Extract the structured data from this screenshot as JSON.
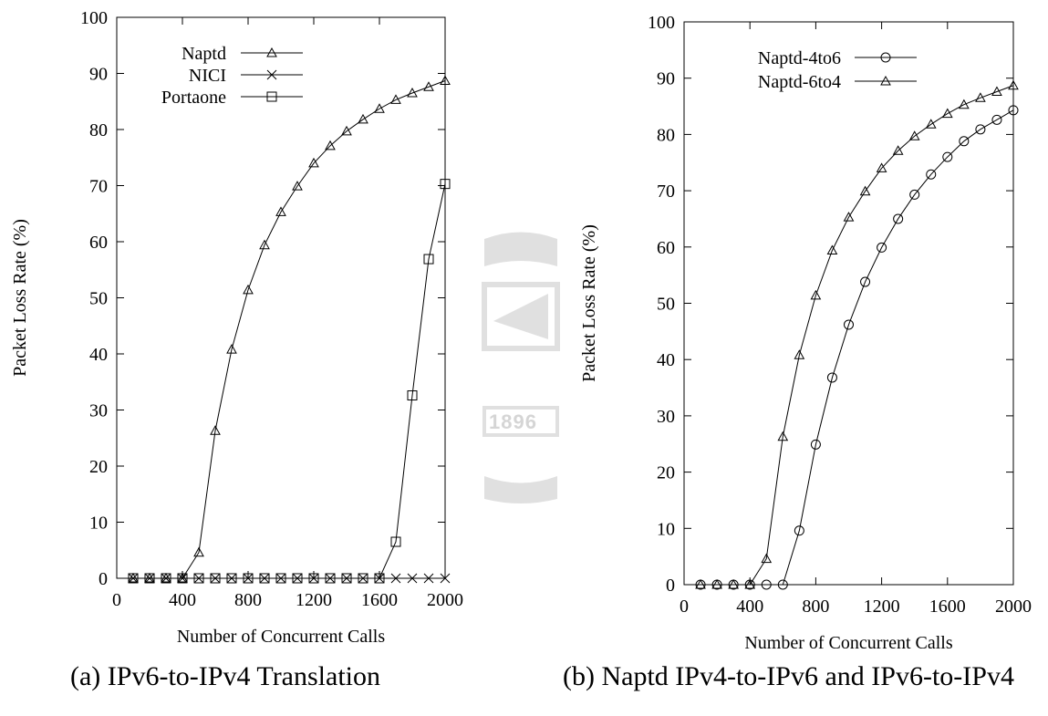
{
  "chart_data": [
    {
      "type": "line",
      "caption": "(a) IPv6-to-IPv4 Translation",
      "xlabel": "Number of Concurrent Calls",
      "ylabel": "Packet Loss Rate (%)",
      "xlim": [
        0,
        2000
      ],
      "ylim": [
        0,
        100
      ],
      "x_ticks": [
        0,
        400,
        800,
        1200,
        1600,
        2000
      ],
      "y_ticks": [
        0,
        10,
        20,
        30,
        40,
        50,
        60,
        70,
        80,
        90,
        100
      ],
      "legend_position": "top-left",
      "grid": false,
      "series": [
        {
          "name": "Naptd",
          "marker": "triangle",
          "x": [
            100,
            200,
            300,
            400,
            500,
            600,
            700,
            800,
            900,
            1000,
            1100,
            1200,
            1300,
            1400,
            1500,
            1600,
            1700,
            1800,
            1900,
            2000
          ],
          "y": [
            0,
            0,
            0,
            0,
            4.6,
            26.3,
            40.8,
            51.4,
            59.4,
            65.3,
            69.9,
            74.0,
            77.1,
            79.7,
            81.8,
            83.7,
            85.3,
            86.5,
            87.6,
            88.7
          ]
        },
        {
          "name": "NICI",
          "marker": "cross",
          "x": [
            100,
            200,
            300,
            400,
            500,
            600,
            700,
            800,
            900,
            1000,
            1100,
            1200,
            1300,
            1400,
            1500,
            1600,
            1700,
            1800,
            1900,
            2000
          ],
          "y": [
            0,
            0,
            0,
            0,
            0,
            0,
            0,
            0,
            0,
            0,
            0,
            0,
            0,
            0,
            0,
            0,
            0,
            0,
            0,
            0
          ]
        },
        {
          "name": "Portaone",
          "marker": "square",
          "x": [
            100,
            200,
            300,
            400,
            500,
            600,
            700,
            800,
            900,
            1000,
            1100,
            1200,
            1300,
            1400,
            1500,
            1600,
            1700,
            1800,
            1900,
            2000
          ],
          "y": [
            0,
            0,
            0,
            0,
            0,
            0,
            0,
            0,
            0,
            0,
            0,
            0,
            0,
            0,
            0,
            0,
            6.5,
            32.6,
            56.9,
            70.3
          ]
        }
      ]
    },
    {
      "type": "line",
      "caption": "(b) Naptd IPv4-to-IPv6 and IPv6-to-IPv4",
      "xlabel": "Number of Concurrent Calls",
      "ylabel": "Packet Loss Rate (%)",
      "xlim": [
        0,
        2000
      ],
      "ylim": [
        0,
        100
      ],
      "x_ticks": [
        0,
        400,
        800,
        1200,
        1600,
        2000
      ],
      "y_ticks": [
        0,
        10,
        20,
        30,
        40,
        50,
        60,
        70,
        80,
        90,
        100
      ],
      "legend_position": "top-left",
      "grid": false,
      "series": [
        {
          "name": "Naptd-4to6",
          "marker": "circle",
          "x": [
            100,
            200,
            300,
            400,
            500,
            600,
            700,
            800,
            900,
            1000,
            1100,
            1200,
            1300,
            1400,
            1500,
            1600,
            1700,
            1800,
            1900,
            2000
          ],
          "y": [
            0,
            0,
            0,
            0,
            0,
            0,
            9.6,
            24.9,
            36.8,
            46.2,
            53.8,
            59.9,
            65.0,
            69.3,
            72.9,
            76.0,
            78.8,
            80.9,
            82.6,
            84.3
          ]
        },
        {
          "name": "Naptd-6to4",
          "marker": "triangle",
          "x": [
            100,
            200,
            300,
            400,
            500,
            600,
            700,
            800,
            900,
            1000,
            1100,
            1200,
            1300,
            1400,
            1500,
            1600,
            1700,
            1800,
            1900,
            2000
          ],
          "y": [
            0,
            0,
            0,
            0,
            4.6,
            26.3,
            40.8,
            51.4,
            59.4,
            65.3,
            69.9,
            74.0,
            77.1,
            79.7,
            81.8,
            83.7,
            85.3,
            86.5,
            87.6,
            88.7
          ]
        }
      ]
    }
  ],
  "captions": {
    "a": "(a) IPv6-to-IPv4 Translation",
    "b": "(b) Naptd IPv4-to-IPv6 and IPv6-to-IPv4"
  },
  "watermark": {
    "text": "1896",
    "color": "#888888"
  }
}
